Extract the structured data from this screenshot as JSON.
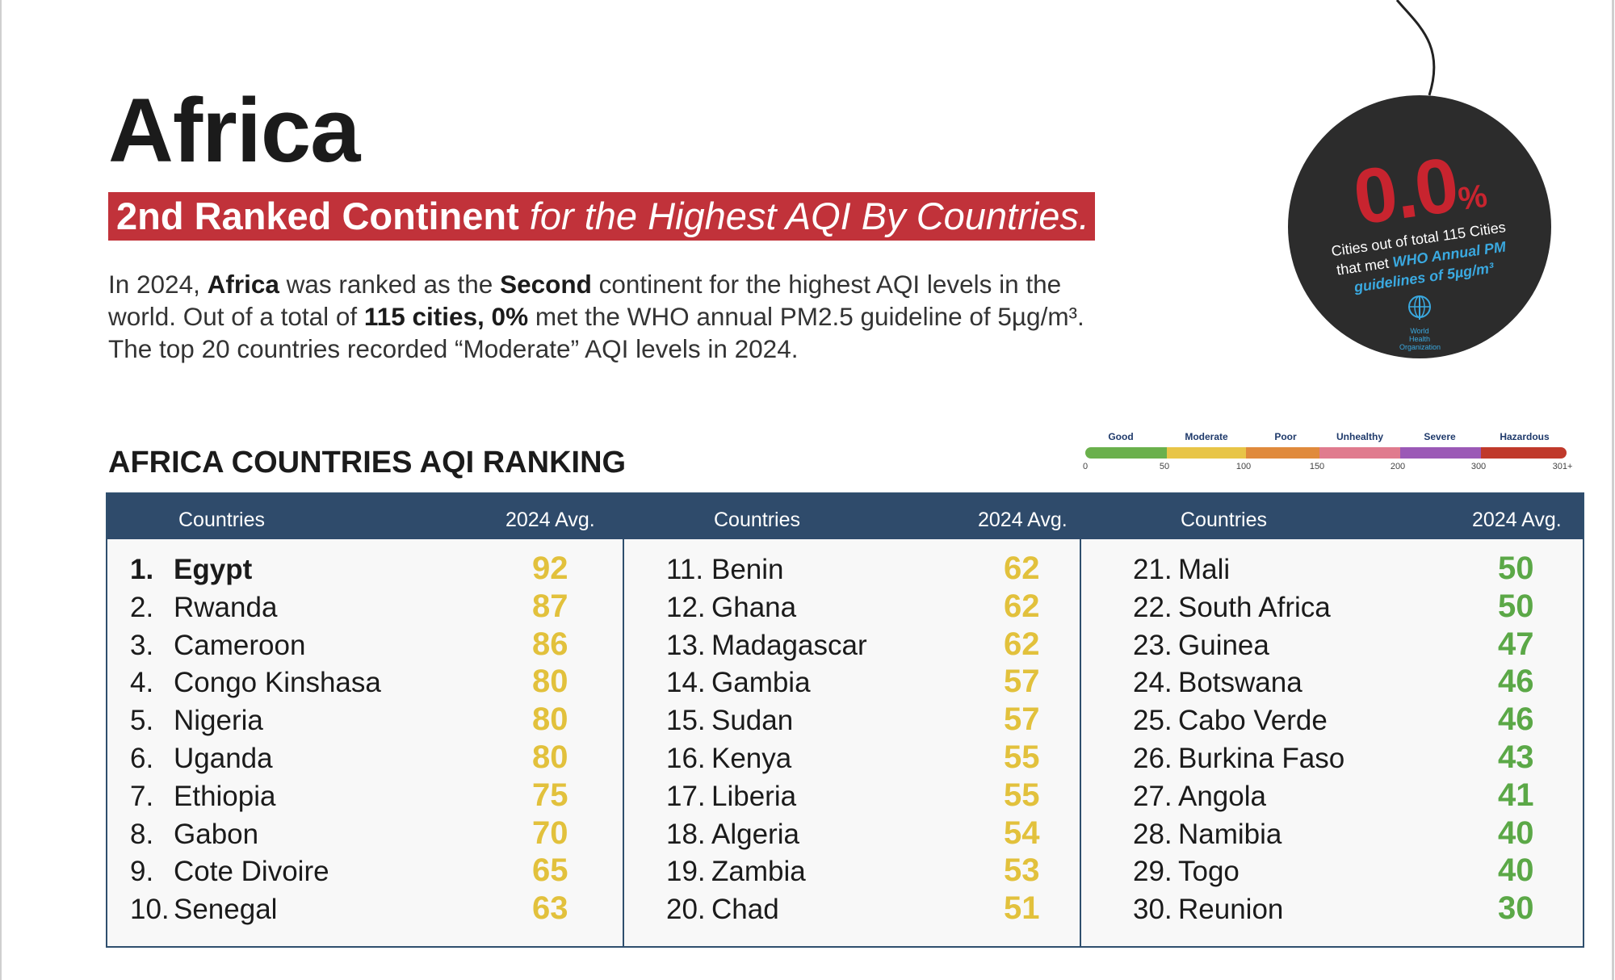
{
  "title": "Africa",
  "banner": {
    "bold": "2nd Ranked Continent",
    "italic": " for the Highest AQI By Countries."
  },
  "intro": {
    "p1": "In 2024, ",
    "b1": "Africa",
    "p2": " was ranked as the ",
    "b2": "Second",
    "p3": " continent for the highest AQI levels in the world. Out of a total of ",
    "b3": "115 cities, 0%",
    "p4": " met the WHO annual PM2.5 guideline of 5µg/m³. The top 20 countries recorded “Moderate” AQI levels in 2024."
  },
  "section_title": "AFRICA COUNTRIES AQI RANKING",
  "badge": {
    "value": "0.0",
    "unit": "%",
    "caption_pre": "Cities out of total 115 Cities that met ",
    "caption_who": "WHO Annual PM guidelines of 5µg/m³",
    "logo_text": "World Health Organization"
  },
  "scale": {
    "labels": [
      "Good",
      "Moderate",
      "Poor",
      "Unhealthy",
      "Severe",
      "Hazardous"
    ],
    "ticks": [
      "0",
      "50",
      "100",
      "150",
      "200",
      "300",
      "301+"
    ],
    "colors": [
      "#6ab04c",
      "#e8c547",
      "#e08a3c",
      "#e07b8e",
      "#9b59b6",
      "#c0392b"
    ]
  },
  "table": {
    "headers": [
      {
        "country": "Countries",
        "avg": "2024 Avg."
      },
      {
        "country": "Countries",
        "avg": "2024 Avg."
      },
      {
        "country": "Countries",
        "avg": "2024 Avg."
      }
    ],
    "columns": [
      [
        {
          "rank": "1.",
          "country": "Egypt",
          "value": "92"
        },
        {
          "rank": "2.",
          "country": "Rwanda",
          "value": "87"
        },
        {
          "rank": "3.",
          "country": "Cameroon",
          "value": "86"
        },
        {
          "rank": "4.",
          "country": "Congo Kinshasa",
          "value": "80"
        },
        {
          "rank": "5.",
          "country": "Nigeria",
          "value": "80"
        },
        {
          "rank": "6.",
          "country": "Uganda",
          "value": "80"
        },
        {
          "rank": "7.",
          "country": "Ethiopia",
          "value": "75"
        },
        {
          "rank": "8.",
          "country": "Gabon",
          "value": "70"
        },
        {
          "rank": "9.",
          "country": "Cote Divoire",
          "value": "65"
        },
        {
          "rank": "10.",
          "country": "Senegal",
          "value": "63"
        }
      ],
      [
        {
          "rank": "11.",
          "country": "Benin",
          "value": "62"
        },
        {
          "rank": "12.",
          "country": "Ghana",
          "value": "62"
        },
        {
          "rank": "13.",
          "country": "Madagascar",
          "value": "62"
        },
        {
          "rank": "14.",
          "country": "Gambia",
          "value": "57"
        },
        {
          "rank": "15.",
          "country": "Sudan",
          "value": "57"
        },
        {
          "rank": "16.",
          "country": "Kenya",
          "value": "55"
        },
        {
          "rank": "17.",
          "country": "Liberia",
          "value": "55"
        },
        {
          "rank": "18.",
          "country": "Algeria",
          "value": "54"
        },
        {
          "rank": "19.",
          "country": "Zambia",
          "value": "53"
        },
        {
          "rank": "20.",
          "country": "Chad",
          "value": "51"
        }
      ],
      [
        {
          "rank": "21.",
          "country": "Mali",
          "value": "50"
        },
        {
          "rank": "22.",
          "country": "South Africa",
          "value": "50"
        },
        {
          "rank": "23.",
          "country": "Guinea",
          "value": "47"
        },
        {
          "rank": "24.",
          "country": "Botswana",
          "value": "46"
        },
        {
          "rank": "25.",
          "country": "Cabo Verde",
          "value": "46"
        },
        {
          "rank": "26.",
          "country": "Burkina Faso",
          "value": "43"
        },
        {
          "rank": "27.",
          "country": "Angola",
          "value": "41"
        },
        {
          "rank": "28.",
          "country": "Namibia",
          "value": "40"
        },
        {
          "rank": "29.",
          "country": "Togo",
          "value": "40"
        },
        {
          "rank": "30.",
          "country": "Reunion",
          "value": "30"
        }
      ]
    ]
  }
}
